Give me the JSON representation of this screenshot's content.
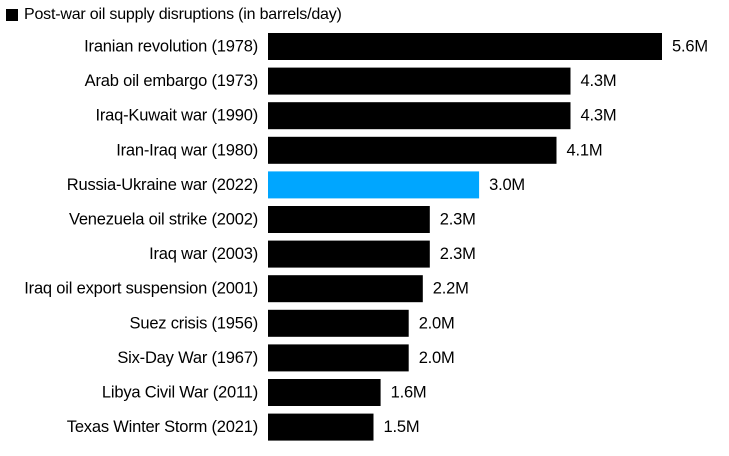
{
  "chart_data": {
    "type": "bar",
    "orientation": "horizontal",
    "legend": {
      "label": "Post-war oil supply disruptions (in barrels/day)",
      "placement": "top-left"
    },
    "categories": [
      "Iranian revolution (1978)",
      "Arab oil embargo (1973)",
      "Iraq-Kuwait war (1990)",
      "Iran-Iraq war (1980)",
      "Russia-Ukraine war (2022)",
      "Venezuela oil strike (2002)",
      "Iraq war (2003)",
      "Iraq oil export suspension (2001)",
      "Suez crisis (1956)",
      "Six-Day War (1967)",
      "Libya Civil War (2011)",
      "Texas Winter Storm (2021)"
    ],
    "values": [
      5.6,
      4.3,
      4.3,
      4.1,
      3.0,
      2.3,
      2.3,
      2.2,
      2.0,
      2.0,
      1.6,
      1.5
    ],
    "value_labels": [
      "5.6M",
      "4.3M",
      "4.3M",
      "4.1M",
      "3.0M",
      "2.3M",
      "2.3M",
      "2.2M",
      "2.0M",
      "2.0M",
      "1.6M",
      "1.5M"
    ],
    "highlight_index": 4,
    "xlim": [
      0,
      5.6
    ],
    "grid": false,
    "colors": {
      "default": "#000000",
      "highlight": "#00A6FF",
      "text": "#000000"
    }
  }
}
